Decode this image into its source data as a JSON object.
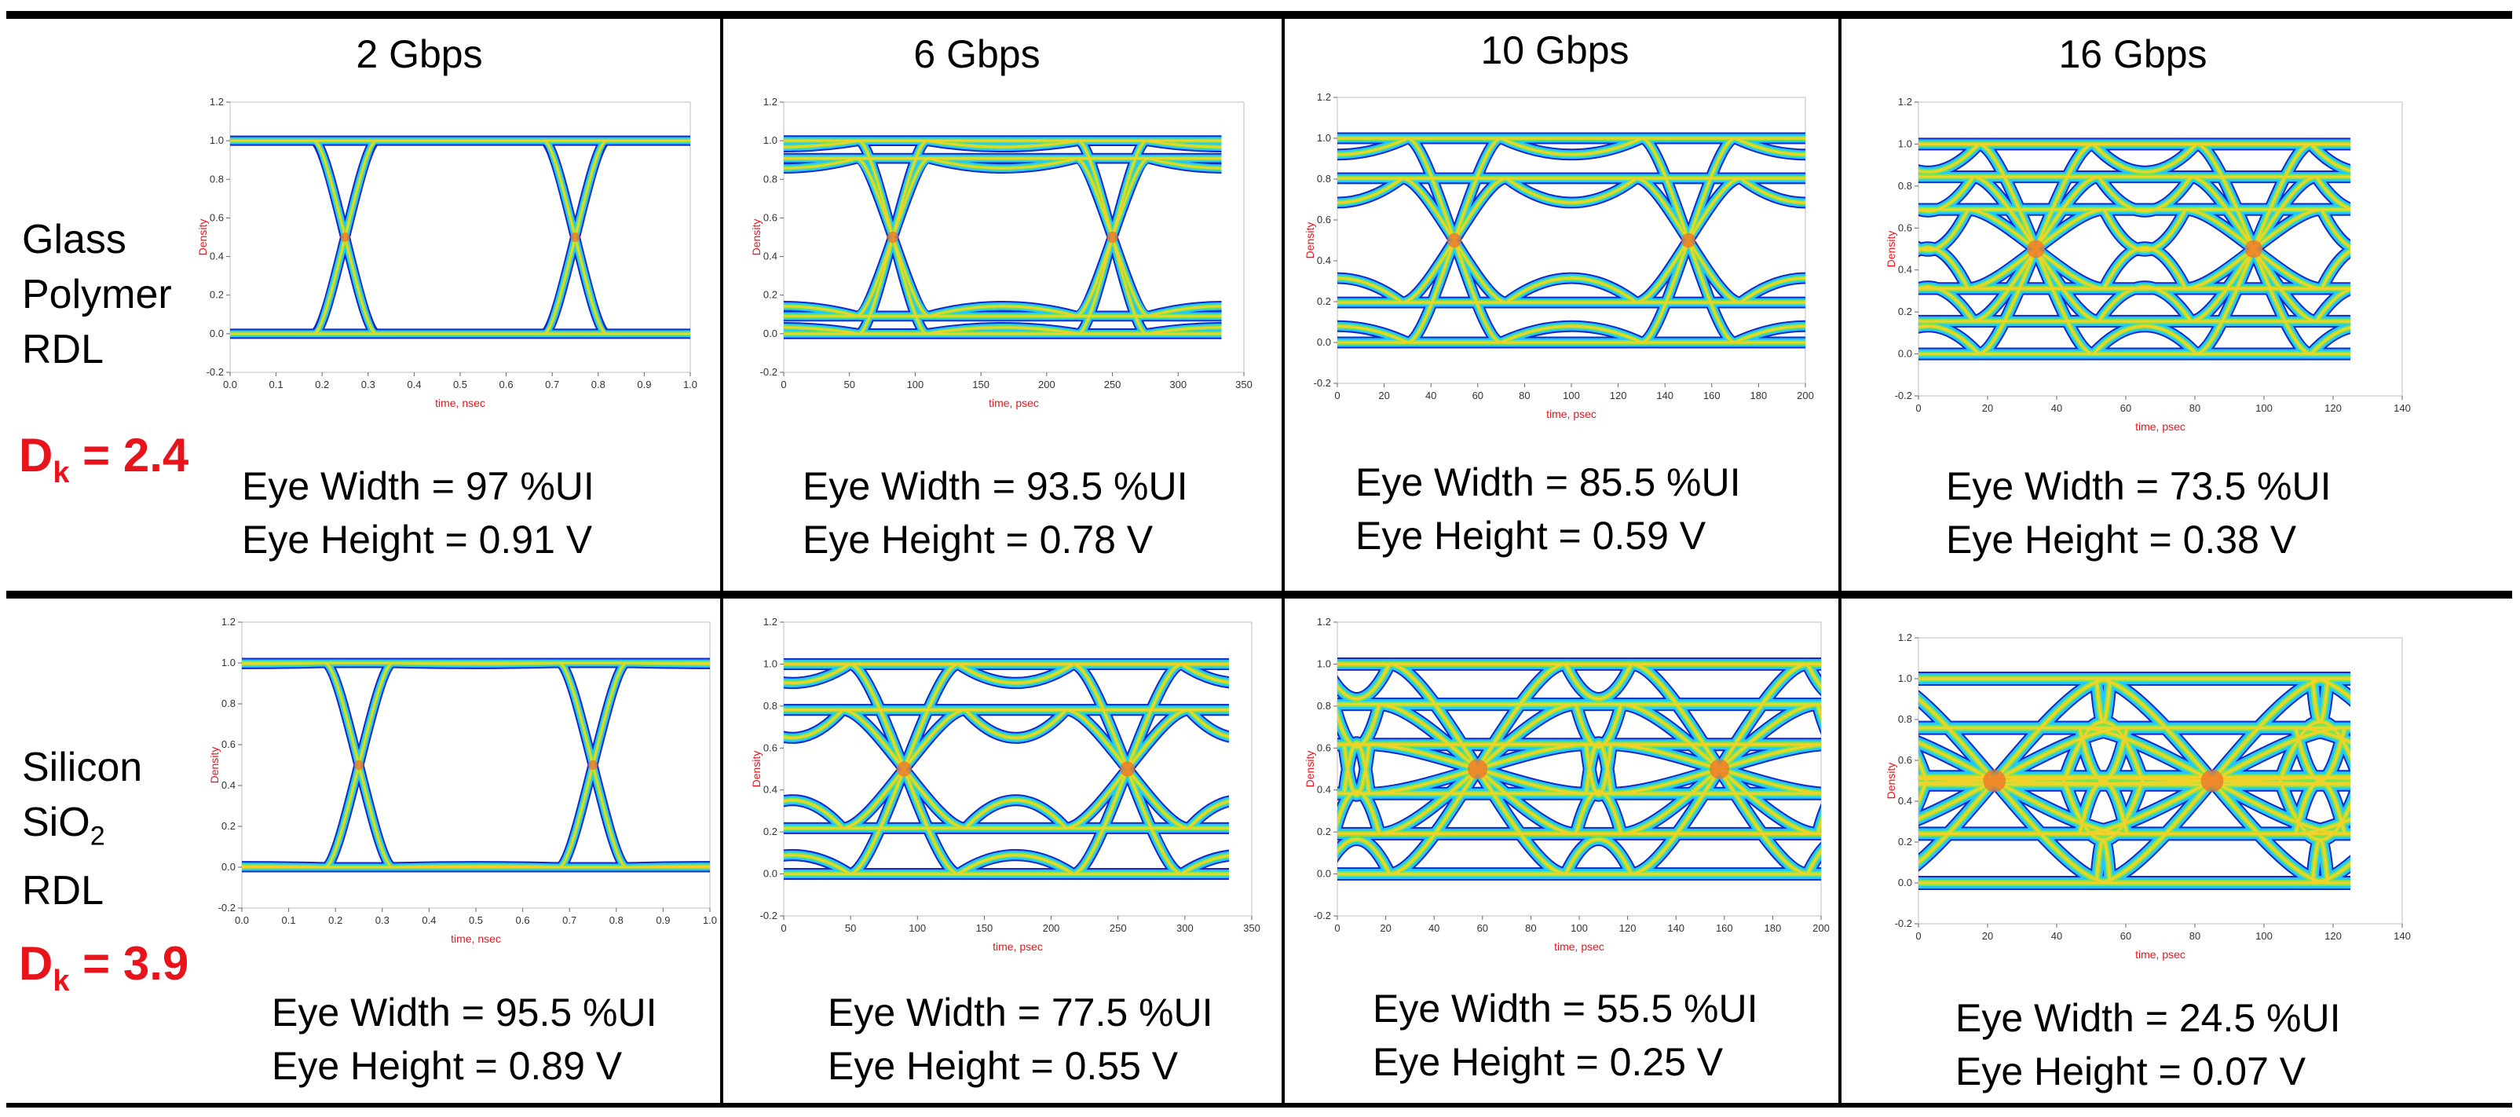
{
  "columns": [
    "2 Gbps",
    "6 Gbps",
    "10 Gbps",
    "16 Gbps"
  ],
  "rows": [
    {
      "label_lines": [
        "Glass",
        "Polymer",
        "RDL"
      ],
      "dk_prefix": "D",
      "dk_sub": "k",
      "dk_value": " = 2.4",
      "cells": [
        {
          "eye_width": "Eye Width = 97 %UI",
          "eye_height": "Eye Height = 0.91 V"
        },
        {
          "eye_width": "Eye Width = 93.5 %UI",
          "eye_height": "Eye Height = 0.78 V"
        },
        {
          "eye_width": "Eye Width = 85.5 %UI",
          "eye_height": "Eye Height = 0.59 V"
        },
        {
          "eye_width": "Eye Width = 73.5 %UI",
          "eye_height": "Eye Height = 0.38 V"
        }
      ]
    },
    {
      "label_lines": [
        "Silicon",
        "SiO",
        "RDL"
      ],
      "label_sub": "2",
      "dk_prefix": "D",
      "dk_sub": "k",
      "dk_value": " = 3.9",
      "cells": [
        {
          "eye_width": "Eye Width = 95.5 %UI",
          "eye_height": "Eye Height = 0.89 V"
        },
        {
          "eye_width": "Eye Width = 77.5 %UI",
          "eye_height": "Eye Height = 0.55 V"
        },
        {
          "eye_width": "Eye Width = 55.5 %UI",
          "eye_height": "Eye Height = 0.25 V"
        },
        {
          "eye_width": "Eye Width = 24.5 %UI",
          "eye_height": "Eye Height = 0.07 V"
        }
      ]
    }
  ],
  "chart_data": [
    {
      "type": "eye",
      "row": 0,
      "col": 0,
      "ylabel": "Density",
      "xlabel": "time, nsec",
      "xlim": [
        0,
        1.0
      ],
      "xticks": [
        0,
        0.1,
        0.2,
        0.3,
        0.4,
        0.5,
        0.6,
        0.7,
        0.8,
        0.9,
        1.0
      ],
      "ylim": [
        -0.2,
        1.2
      ],
      "yticks": [
        -0.2,
        0.0,
        0.2,
        0.4,
        0.6,
        0.8,
        1.0,
        1.2
      ],
      "crossings": [
        0.25,
        0.75
      ],
      "ui": 0.5,
      "eye_width_pct_ui": 97,
      "eye_height_v": 0.91,
      "data_end": 1.0
    },
    {
      "type": "eye",
      "row": 0,
      "col": 1,
      "ylabel": "Density",
      "xlabel": "time, psec",
      "xlim": [
        0,
        350
      ],
      "xticks": [
        0,
        50,
        100,
        150,
        200,
        250,
        300,
        350
      ],
      "ylim": [
        -0.2,
        1.2
      ],
      "yticks": [
        -0.2,
        0.0,
        0.2,
        0.4,
        0.6,
        0.8,
        1.0,
        1.2
      ],
      "crossings": [
        83,
        250
      ],
      "ui": 167,
      "eye_width_pct_ui": 93.5,
      "eye_height_v": 0.78,
      "data_end": 333
    },
    {
      "type": "eye",
      "row": 0,
      "col": 2,
      "ylabel": "Density",
      "xlabel": "time, psec",
      "xlim": [
        0,
        200
      ],
      "xticks": [
        0,
        20,
        40,
        60,
        80,
        100,
        120,
        140,
        160,
        180,
        200
      ],
      "ylim": [
        -0.2,
        1.2
      ],
      "yticks": [
        -0.2,
        0.0,
        0.2,
        0.4,
        0.6,
        0.8,
        1.0,
        1.2
      ],
      "crossings": [
        50,
        150
      ],
      "ui": 100,
      "eye_width_pct_ui": 85.5,
      "eye_height_v": 0.59,
      "data_end": 200
    },
    {
      "type": "eye",
      "row": 0,
      "col": 3,
      "ylabel": "Density",
      "xlabel": "time, psec",
      "xlim": [
        0,
        140
      ],
      "xticks": [
        0,
        20,
        40,
        60,
        80,
        100,
        120,
        140
      ],
      "ylim": [
        -0.2,
        1.2
      ],
      "yticks": [
        -0.2,
        0.0,
        0.2,
        0.4,
        0.6,
        0.8,
        1.0,
        1.2
      ],
      "crossings": [
        34,
        97
      ],
      "ui": 62.5,
      "eye_width_pct_ui": 73.5,
      "eye_height_v": 0.38,
      "data_end": 125
    },
    {
      "type": "eye",
      "row": 1,
      "col": 0,
      "ylabel": "Density",
      "xlabel": "time, nsec",
      "xlim": [
        0,
        1.0
      ],
      "xticks": [
        0,
        0.1,
        0.2,
        0.3,
        0.4,
        0.5,
        0.6,
        0.7,
        0.8,
        0.9,
        1.0
      ],
      "ylim": [
        -0.2,
        1.2
      ],
      "yticks": [
        -0.2,
        0.0,
        0.2,
        0.4,
        0.6,
        0.8,
        1.0,
        1.2
      ],
      "crossings": [
        0.25,
        0.75
      ],
      "ui": 0.5,
      "eye_width_pct_ui": 95.5,
      "eye_height_v": 0.89,
      "data_end": 1.0
    },
    {
      "type": "eye",
      "row": 1,
      "col": 1,
      "ylabel": "Density",
      "xlabel": "time, psec",
      "xlim": [
        0,
        350
      ],
      "xticks": [
        0,
        50,
        100,
        150,
        200,
        250,
        300,
        350
      ],
      "ylim": [
        -0.2,
        1.2
      ],
      "yticks": [
        -0.2,
        0.0,
        0.2,
        0.4,
        0.6,
        0.8,
        1.0,
        1.2
      ],
      "crossings": [
        90,
        257
      ],
      "ui": 167,
      "eye_width_pct_ui": 77.5,
      "eye_height_v": 0.55,
      "data_end": 333
    },
    {
      "type": "eye",
      "row": 1,
      "col": 2,
      "ylabel": "Density",
      "xlabel": "time, psec",
      "xlim": [
        0,
        200
      ],
      "xticks": [
        0,
        20,
        40,
        60,
        80,
        100,
        120,
        140,
        160,
        180,
        200
      ],
      "ylim": [
        -0.2,
        1.2
      ],
      "yticks": [
        -0.2,
        0.0,
        0.2,
        0.4,
        0.6,
        0.8,
        1.0,
        1.2
      ],
      "crossings": [
        58,
        158
      ],
      "ui": 100,
      "eye_width_pct_ui": 55.5,
      "eye_height_v": 0.25,
      "data_end": 200
    },
    {
      "type": "eye",
      "row": 1,
      "col": 3,
      "ylabel": "Density",
      "xlabel": "time, psec",
      "xlim": [
        0,
        140
      ],
      "xticks": [
        0,
        20,
        40,
        60,
        80,
        100,
        120,
        140
      ],
      "ylim": [
        -0.2,
        1.2
      ],
      "yticks": [
        -0.2,
        0.0,
        0.2,
        0.4,
        0.6,
        0.8,
        1.0,
        1.2
      ],
      "crossings": [
        22,
        85
      ],
      "ui": 62.5,
      "eye_width_pct_ui": 24.5,
      "eye_height_v": 0.07,
      "data_end": 125
    }
  ]
}
